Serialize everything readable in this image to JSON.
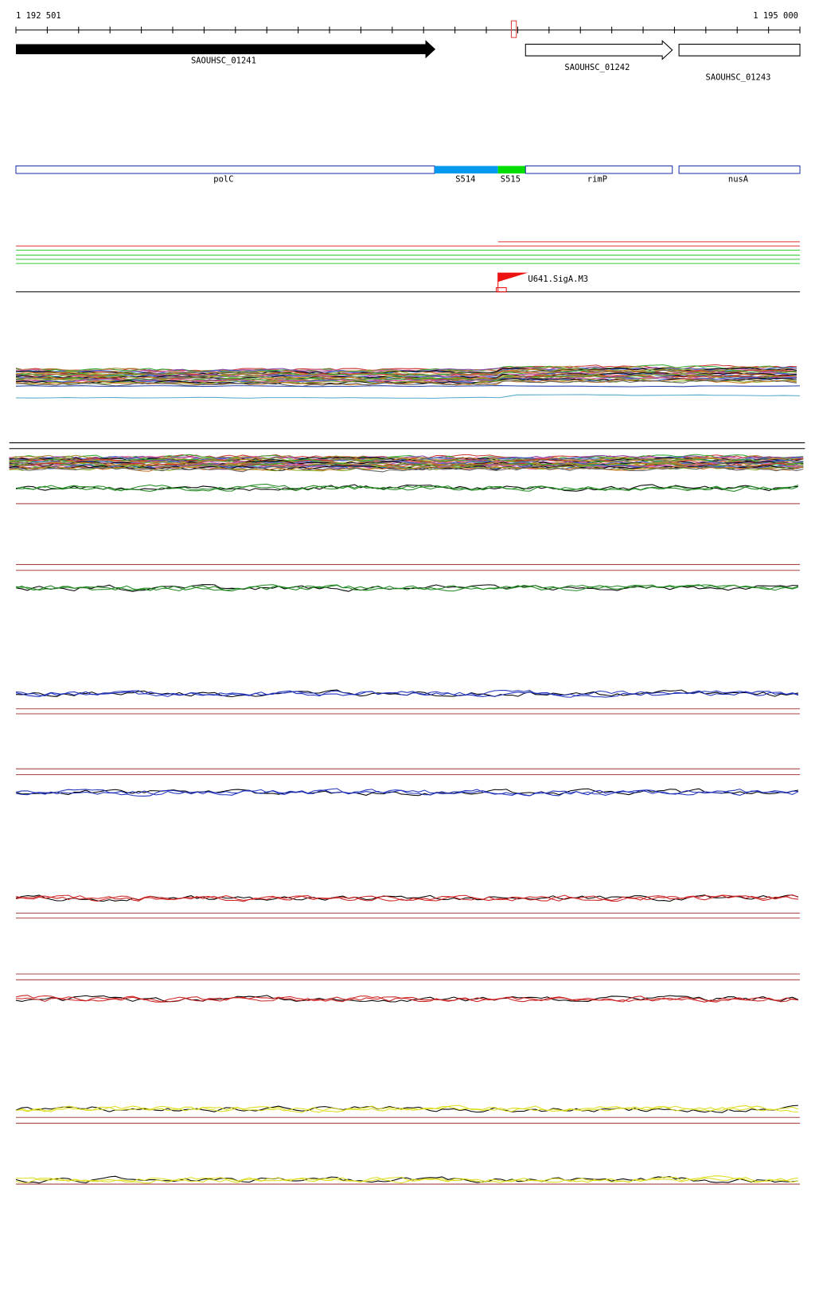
{
  "ruler": {
    "start": "1 192 501",
    "end": "1 195 000"
  },
  "genes": [
    {
      "label": "SAOUHSC_01241"
    },
    {
      "label": "SAOUHSC_01242"
    },
    {
      "label": "SAOUHSC_01243"
    }
  ],
  "segments": [
    {
      "label": "polC"
    },
    {
      "label": "S514"
    },
    {
      "label": "S515"
    },
    {
      "label": "rimP"
    },
    {
      "label": "nusA"
    }
  ],
  "promoter": {
    "label": "U641.SigA.M3"
  }
}
